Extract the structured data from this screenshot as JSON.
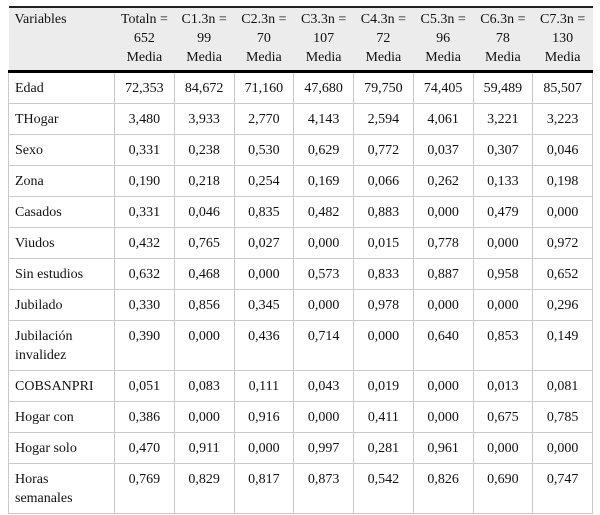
{
  "colors": {
    "header_background": "#ececec",
    "grid_line": "#c9c9c9",
    "heavy_rule": "#000000",
    "top_rule": "#222222",
    "text": "#111111",
    "page_background": "#ffffff"
  },
  "table": {
    "variables_header": "Variables",
    "stat_row_label": "Media",
    "columns": [
      {
        "title": "Totaln =",
        "n": "652",
        "stat": "Media"
      },
      {
        "title": "C1.3n =",
        "n": "99",
        "stat": "Media"
      },
      {
        "title": "C2.3n =",
        "n": "70",
        "stat": "Media"
      },
      {
        "title": "C3.3n =",
        "n": "107",
        "stat": "Media"
      },
      {
        "title": "C4.3n =",
        "n": "72",
        "stat": "Media"
      },
      {
        "title": "C5.3n =",
        "n": "96",
        "stat": "Media"
      },
      {
        "title": "C6.3n =",
        "n": "78",
        "stat": "Media"
      },
      {
        "title": "C7.3n =",
        "n": "130",
        "stat": "Media"
      }
    ],
    "rows": [
      {
        "label": "Edad",
        "values": [
          "72,353",
          "84,672",
          "71,160",
          "47,680",
          "79,750",
          "74,405",
          "59,489",
          "85,507"
        ]
      },
      {
        "label": "THogar",
        "values": [
          "3,480",
          "3,933",
          "2,770",
          "4,143",
          "2,594",
          "4,061",
          "3,221",
          "3,223"
        ]
      },
      {
        "label": "Sexo",
        "values": [
          "0,331",
          "0,238",
          "0,530",
          "0,629",
          "0,772",
          "0,037",
          "0,307",
          "0,046"
        ]
      },
      {
        "label": "Zona",
        "values": [
          "0,190",
          "0,218",
          "0,254",
          "0,169",
          "0,066",
          "0,262",
          "0,133",
          "0,198"
        ]
      },
      {
        "label": "Casados",
        "values": [
          "0,331",
          "0,046",
          "0,835",
          "0,482",
          "0,883",
          "0,000",
          "0,479",
          "0,000"
        ]
      },
      {
        "label": "Viudos",
        "values": [
          "0,432",
          "0,765",
          "0,027",
          "0,000",
          "0,015",
          "0,778",
          "0,000",
          "0,972"
        ]
      },
      {
        "label": "Sin estudios",
        "values": [
          "0,632",
          "0,468",
          "0,000",
          "0,573",
          "0,833",
          "0,887",
          "0,958",
          "0,652"
        ]
      },
      {
        "label": "Jubilado",
        "values": [
          "0,330",
          "0,856",
          "0,345",
          "0,000",
          "0,978",
          "0,000",
          "0,000",
          "0,296"
        ]
      },
      {
        "label": "Jubilación invalidez",
        "values": [
          "0,390",
          "0,000",
          "0,436",
          "0,714",
          "0,000",
          "0,640",
          "0,853",
          "0,149"
        ]
      },
      {
        "label": "COBSANPRI",
        "values": [
          "0,051",
          "0,083",
          "0,111",
          "0,043",
          "0,019",
          "0,000",
          "0,013",
          "0,081"
        ]
      },
      {
        "label": "Hogar con",
        "values": [
          "0,386",
          "0,000",
          "0,916",
          "0,000",
          "0,411",
          "0,000",
          "0,675",
          "0,785"
        ]
      },
      {
        "label": "Hogar solo",
        "values": [
          "0,470",
          "0,911",
          "0,000",
          "0,997",
          "0,281",
          "0,961",
          "0,000",
          "0,000"
        ]
      },
      {
        "label": "Horas semanales",
        "values": [
          "0,769",
          "0,829",
          "0,817",
          "0,873",
          "0,542",
          "0,826",
          "0,690",
          "0,747"
        ]
      }
    ]
  }
}
